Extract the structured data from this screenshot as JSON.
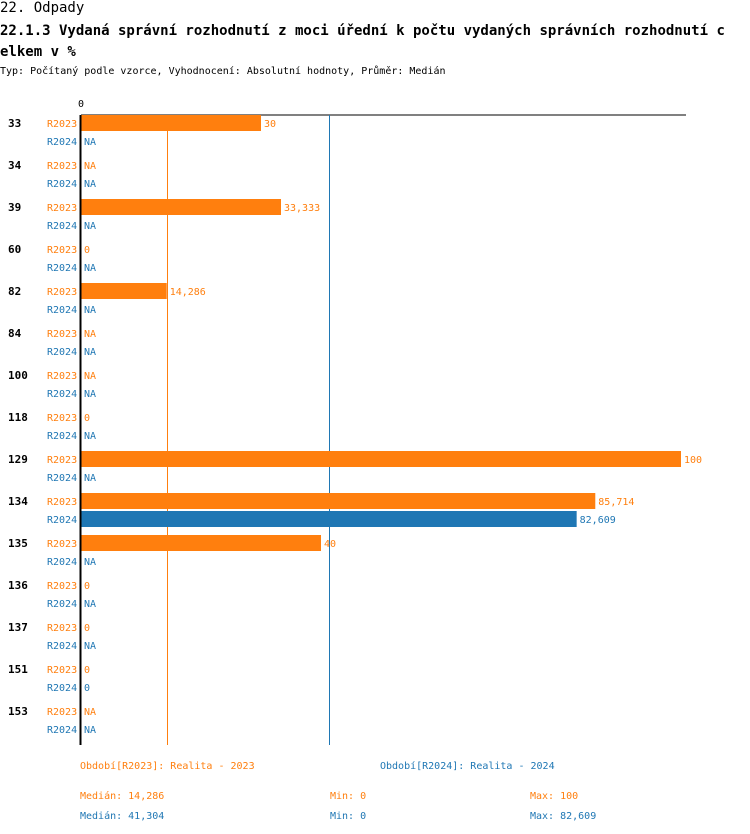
{
  "header": {
    "section": "22. Odpady",
    "title": "22.1.3 Vydaná správní rozhodnutí z moci úřední k počtu vydaných správních rozhodnutí celkem v %",
    "meta": "Typ: Počítaný podle vzorce, Vyhodnocení: Absolutní hodnoty, Průměr: Medián"
  },
  "colors": {
    "r2023": "#ff7f0e",
    "r2024": "#1f77b4",
    "axis": "#000000"
  },
  "chart_data": {
    "type": "bar",
    "orientation": "horizontal",
    "axis_tick_label": "0",
    "xlim": [
      0,
      100
    ],
    "categories": [
      "33",
      "34",
      "39",
      "60",
      "82",
      "84",
      "100",
      "118",
      "129",
      "134",
      "135",
      "136",
      "137",
      "151",
      "153"
    ],
    "series": [
      {
        "name": "R2023",
        "values": [
          30,
          null,
          33.333,
          0,
          14.286,
          null,
          null,
          0,
          100,
          85.714,
          40,
          0,
          0,
          0,
          null
        ],
        "labels": [
          "30",
          "NA",
          "33,333",
          "0",
          "14,286",
          "NA",
          "NA",
          "0",
          "100",
          "85,714",
          "40",
          "0",
          "0",
          "0",
          "NA"
        ],
        "median": 14.286
      },
      {
        "name": "R2024",
        "values": [
          null,
          null,
          null,
          null,
          null,
          null,
          null,
          null,
          null,
          82.609,
          null,
          null,
          null,
          0,
          null
        ],
        "labels": [
          "NA",
          "NA",
          "NA",
          "NA",
          "NA",
          "NA",
          "NA",
          "NA",
          "NA",
          "82,609",
          "NA",
          "NA",
          "NA",
          "0",
          "NA"
        ],
        "median": 41.304
      }
    ]
  },
  "legend": {
    "r2023": {
      "period": "Období[R2023]: Realita - 2023",
      "median": "Medián: 14,286",
      "min": "Min: 0",
      "max": "Max: 100"
    },
    "r2024": {
      "period": "Období[R2024]: Realita - 2024",
      "median": "Medián: 41,304",
      "min": "Min: 0",
      "max": "Max: 82,609"
    }
  }
}
